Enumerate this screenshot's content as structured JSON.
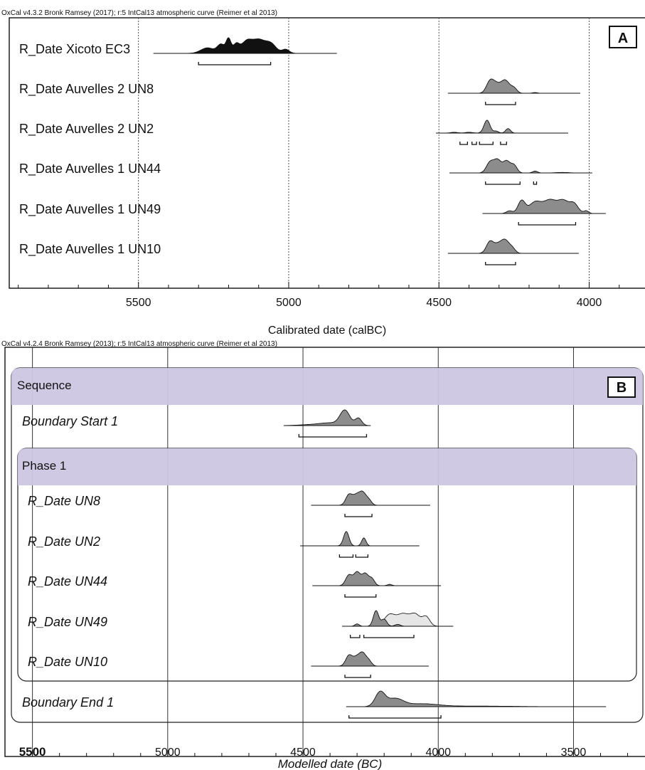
{
  "chart_data": [
    {
      "type": "density",
      "panel": "A",
      "header": "OxCal v4.3.2 Bronk Ramsey (2017); r:5 IntCal13 atmospheric curve (Reimer et al 2013)",
      "xlabel": "Calibrated date (calBC)",
      "x_ticks": [
        "5500",
        "5000",
        "4500",
        "4000"
      ],
      "x_range": [
        5930,
        3800
      ],
      "reference_lines": [
        5500,
        5000,
        4500,
        4000
      ],
      "series": [
        {
          "name": "R_Date Xicoto EC3",
          "fill": "#111111",
          "curve_range": [
            5450,
            4840
          ],
          "peaks": [
            [
              5270,
              0.35,
              22
            ],
            [
              5225,
              0.55,
              12
            ],
            [
              5200,
              0.9,
              8
            ],
            [
              5175,
              0.55,
              10
            ],
            [
              5140,
              0.75,
              18
            ],
            [
              5100,
              0.8,
              20
            ],
            [
              5060,
              0.6,
              18
            ],
            [
              5010,
              0.25,
              12
            ]
          ],
          "ranges95": [
            [
              5300,
              5060
            ]
          ]
        },
        {
          "name": "R_Date Auvelles 2 UN8",
          "fill": "#8c8c8c",
          "curve_range": [
            4470,
            4030
          ],
          "peaks": [
            [
              4330,
              0.9,
              12
            ],
            [
              4310,
              0.55,
              12
            ],
            [
              4280,
              1.0,
              15
            ],
            [
              4250,
              0.35,
              10
            ],
            [
              4180,
              0.05,
              8
            ]
          ],
          "ranges95": [
            [
              4345,
              4245
            ]
          ]
        },
        {
          "name": "R_Date Auvelles 2 UN2",
          "fill": "#8c8c8c",
          "curve_range": [
            4510,
            4070
          ],
          "peaks": [
            [
              4450,
              0.06,
              12
            ],
            [
              4400,
              0.06,
              12
            ],
            [
              4340,
              1.0,
              10
            ],
            [
              4310,
              0.15,
              8
            ],
            [
              4270,
              0.35,
              8
            ]
          ],
          "ranges95": [
            [
              4430,
              4405
            ],
            [
              4390,
              4375
            ],
            [
              4365,
              4320
            ],
            [
              4295,
              4275
            ]
          ]
        },
        {
          "name": "R_Date Auvelles 1 UN44",
          "fill": "#8c8c8c",
          "curve_range": [
            4465,
            3990
          ],
          "peaks": [
            [
              4330,
              0.85,
              12
            ],
            [
              4305,
              1.0,
              12
            ],
            [
              4275,
              0.95,
              12
            ],
            [
              4250,
              0.6,
              10
            ],
            [
              4180,
              0.15,
              8
            ],
            [
              4090,
              0.04,
              20
            ]
          ],
          "ranges95": [
            [
              4345,
              4230
            ],
            [
              4185,
              4175
            ]
          ]
        },
        {
          "name": "R_Date Auvelles 1 UN49",
          "fill": "#8c8c8c",
          "curve_range": [
            4355,
            3945
          ],
          "peaks": [
            [
              4265,
              0.2,
              10
            ],
            [
              4225,
              0.95,
              12
            ],
            [
              4180,
              0.85,
              20
            ],
            [
              4130,
              1.0,
              22
            ],
            [
              4085,
              0.9,
              18
            ],
            [
              4050,
              0.7,
              14
            ],
            [
              4010,
              0.2,
              8
            ]
          ],
          "ranges95": [
            [
              4235,
              4045
            ]
          ]
        },
        {
          "name": "R_Date Auvelles 1 UN10",
          "fill": "#8c8c8c",
          "curve_range": [
            4470,
            4035
          ],
          "peaks": [
            [
              4330,
              0.85,
              12
            ],
            [
              4305,
              0.5,
              12
            ],
            [
              4280,
              0.95,
              14
            ],
            [
              4255,
              0.3,
              10
            ]
          ],
          "ranges95": [
            [
              4345,
              4245
            ]
          ]
        }
      ]
    },
    {
      "type": "density",
      "panel": "B",
      "header": "OxCal v4.2.4 Bronk Ramsey (2013); r:5 IntCal13 atmospheric curve (Reimer et al 2013)",
      "xlabel": "Modelled date (BC)",
      "x_ticks": [
        "5500",
        "5000",
        "4500",
        "4000",
        "3500"
      ],
      "x_range": [
        5520,
        3220
      ],
      "reference_lines": [
        5500,
        5000,
        4500,
        4000,
        3500
      ],
      "sequence_label": "Sequence",
      "phase_label": "Phase 1",
      "series": [
        {
          "name": "Boundary Start 1",
          "fill": "#8c8c8c",
          "curve_range": [
            4570,
            4250
          ],
          "peaks": [
            [
              4345,
              1.0,
              18
            ],
            [
              4295,
              0.5,
              12
            ],
            [
              4400,
              0.18,
              40
            ],
            [
              4480,
              0.05,
              40
            ]
          ],
          "ranges95": [
            [
              4515,
              4265
            ]
          ]
        },
        {
          "name": "R_Date UN8",
          "fill": "#8c8c8c",
          "curve_range": [
            4470,
            4030
          ],
          "peaks": [
            [
              4330,
              0.8,
              12
            ],
            [
              4305,
              0.6,
              12
            ],
            [
              4280,
              1.0,
              14
            ],
            [
              4255,
              0.3,
              10
            ]
          ],
          "ranges95": [
            [
              4345,
              4245
            ]
          ]
        },
        {
          "name": "R_Date UN2",
          "fill": "#8c8c8c",
          "curve_range": [
            4510,
            4070
          ],
          "peaks": [
            [
              4340,
              1.0,
              10
            ],
            [
              4275,
              0.55,
              8
            ]
          ],
          "ranges95": [
            [
              4365,
              4315
            ],
            [
              4305,
              4260
            ]
          ]
        },
        {
          "name": "R_Date UN44",
          "fill": "#8c8c8c",
          "curve_range": [
            4465,
            3990
          ],
          "peaks": [
            [
              4330,
              0.8,
              12
            ],
            [
              4300,
              1.0,
              12
            ],
            [
              4270,
              0.9,
              12
            ],
            [
              4245,
              0.5,
              10
            ],
            [
              4180,
              0.1,
              8
            ]
          ],
          "ranges95": [
            [
              4345,
              4230
            ]
          ]
        },
        {
          "name": "R_Date UN49",
          "fill": "#8c8c8c",
          "curve_range": [
            4355,
            3945
          ],
          "peaks": [
            [
              4300,
              0.15,
              8
            ],
            [
              4230,
              1.0,
              10
            ],
            [
              4200,
              0.45,
              10
            ],
            [
              4150,
              0.12,
              10
            ]
          ],
          "prior_peaks": [
            [
              4180,
              0.85,
              20
            ],
            [
              4130,
              0.9,
              22
            ],
            [
              4085,
              0.85,
              18
            ],
            [
              4045,
              0.7,
              14
            ]
          ],
          "ranges95": [
            [
              4325,
              4290
            ],
            [
              4275,
              4090
            ]
          ]
        },
        {
          "name": "R_Date UN10",
          "fill": "#8c8c8c",
          "curve_range": [
            4470,
            4035
          ],
          "peaks": [
            [
              4330,
              0.8,
              12
            ],
            [
              4305,
              0.5,
              12
            ],
            [
              4280,
              1.0,
              14
            ],
            [
              4255,
              0.3,
              10
            ]
          ],
          "ranges95": [
            [
              4345,
              4250
            ]
          ]
        },
        {
          "name": "Boundary End 1",
          "fill": "#8c8c8c",
          "curve_range": [
            4340,
            3380
          ],
          "peaks": [
            [
              4215,
              1.0,
              18
            ],
            [
              4160,
              0.55,
              30
            ],
            [
              4060,
              0.2,
              60
            ],
            [
              3850,
              0.04,
              120
            ]
          ],
          "ranges95": [
            [
              4330,
              3990
            ]
          ]
        }
      ]
    }
  ]
}
